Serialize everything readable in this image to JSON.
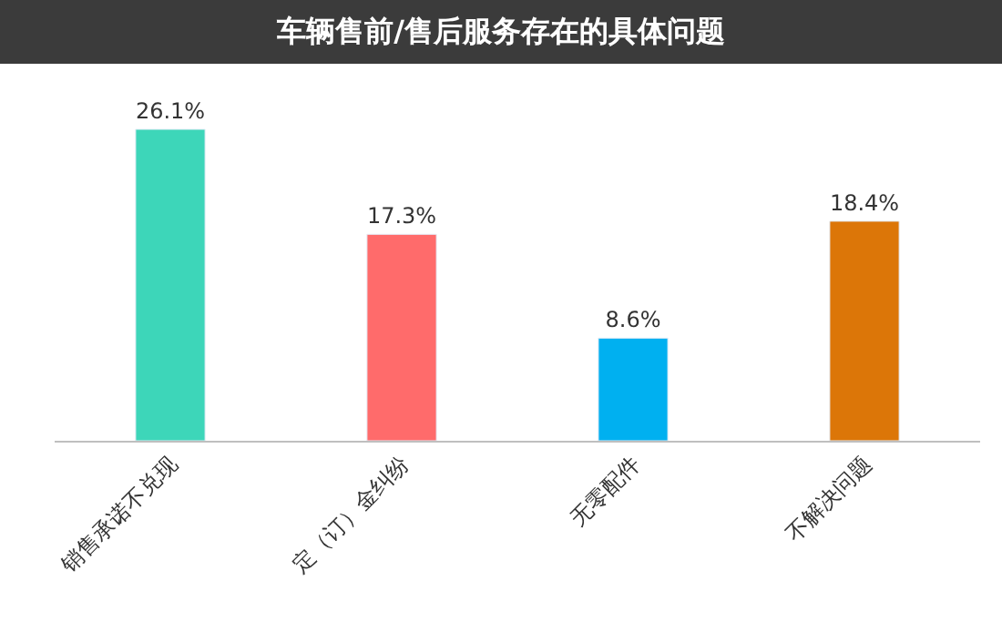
{
  "chart_data": {
    "type": "bar",
    "title": "车辆售前/售后服务存在的具体问题",
    "categories": [
      "销售承诺不兑现",
      "定（订）金纠纷",
      "无零配件",
      "不解决问题"
    ],
    "values": [
      26.1,
      17.3,
      8.6,
      18.4
    ],
    "colors": [
      "#3dd6b9",
      "#ff6b6b",
      "#00b0f0",
      "#dc7608"
    ],
    "value_labels": [
      "26.1%",
      "17.3%",
      "8.6%",
      "18.4%"
    ],
    "legend": false
  }
}
